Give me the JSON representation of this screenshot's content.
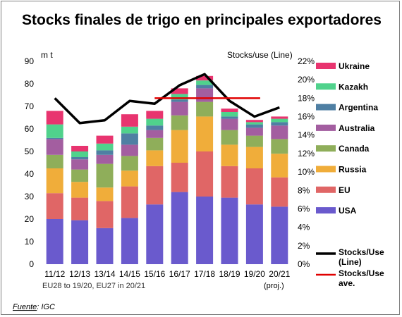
{
  "chart_data": {
    "type": "bar",
    "stacked": true,
    "title": "Stocks finales de trigo en principales exportadores",
    "y_left_label": "m t",
    "y_right_label": "Stocks/use (Line)",
    "y_left_range": [
      0,
      90
    ],
    "y_left_ticks": [
      "0",
      "10",
      "20",
      "30",
      "40",
      "50",
      "60",
      "70",
      "80",
      "90"
    ],
    "y_right_range": [
      0,
      22
    ],
    "y_right_ticks": [
      "0%",
      "2%",
      "4%",
      "6%",
      "8%",
      "10%",
      "12%",
      "14%",
      "16%",
      "18%",
      "20%",
      "22%"
    ],
    "categories": [
      "11/12",
      "12/13",
      "13/14",
      "14/15",
      "15/16",
      "16/17",
      "17/18",
      "18/19",
      "19/20",
      "20/21"
    ],
    "category_note": "(proj.)",
    "footnote": "EU28 to 19/20, EU27 in 20/21",
    "grid": false,
    "legend_position": "right",
    "series": [
      {
        "name": "USA",
        "color": "#6a5acd",
        "values": [
          20,
          19.5,
          16,
          20.5,
          26.5,
          32,
          30,
          29.5,
          26.5,
          25.5
        ]
      },
      {
        "name": "EU",
        "color": "#e06666",
        "values": [
          11.5,
          10,
          12,
          14,
          17,
          13,
          20,
          14,
          16,
          13
        ]
      },
      {
        "name": "Russia",
        "color": "#f0ad3a",
        "values": [
          11,
          7,
          6,
          7,
          7,
          14.5,
          15.5,
          9.5,
          9.5,
          10.5
        ]
      },
      {
        "name": "Canada",
        "color": "#8fae5a",
        "values": [
          6,
          5.5,
          10.5,
          6.5,
          5.5,
          6.5,
          6.5,
          6.5,
          5,
          6.5
        ]
      },
      {
        "name": "Australia",
        "color": "#a35ea0",
        "values": [
          7,
          4.5,
          4,
          5,
          3.5,
          6,
          6,
          5,
          3.5,
          6
        ]
      },
      {
        "name": "Argentina",
        "color": "#4f7fa3",
        "values": [
          0.5,
          1,
          2,
          5,
          2,
          1,
          1.5,
          1,
          1.5,
          1.5
        ]
      },
      {
        "name": "Kazakh",
        "color": "#50d28c",
        "values": [
          6,
          2.5,
          3,
          3,
          3,
          2.5,
          2,
          2,
          1,
          1.5
        ]
      },
      {
        "name": "Ukraine",
        "color": "#e8346f",
        "values": [
          6,
          2.5,
          3.5,
          5.5,
          3.5,
          2.5,
          2,
          1.5,
          1,
          1
        ]
      }
    ],
    "lines": [
      {
        "name": "Stocks/Use (Line)",
        "color": "#000000",
        "axis": "right",
        "values": [
          18.0,
          15.3,
          15.6,
          17.7,
          17.4,
          19.4,
          20.6,
          17.7,
          16.0,
          17.0
        ]
      },
      {
        "name": "Stocks/Use ave.",
        "color": "#e00000",
        "axis": "right",
        "from_category": "15/16",
        "to_category": "19/20",
        "value": 18.0
      }
    ],
    "source_label": "Fuente",
    "source_value": ": IGC"
  }
}
